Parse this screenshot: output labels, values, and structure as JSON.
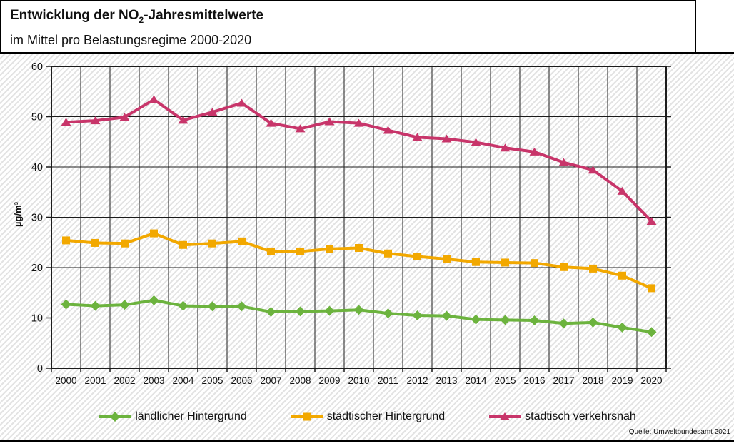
{
  "header": {
    "title_prefix": "Entwicklung der NO",
    "title_sub": "2",
    "title_suffix": "-Jahresmittelwerte",
    "subtitle": "im Mittel pro Belastungsregime 2000-2020"
  },
  "source": "Quelle: Umweltbundesamt 2021",
  "colors": {
    "rural_background": "#6cb33e",
    "urban_background": "#f2a800",
    "urban_traffic": "#c8356a",
    "gridline": "#1c1c1c",
    "hatch_stripe": "#e3e3e3"
  },
  "chart_data": {
    "type": "line",
    "title": "Entwicklung der NO2-Jahresmittelwerte im Mittel pro Belastungsregime 2000-2020",
    "xlabel": "",
    "ylabel": "µg/m³",
    "ylim": [
      0,
      60
    ],
    "ytick_step": 10,
    "grid": true,
    "legend_position": "bottom",
    "categories": [
      2000,
      2001,
      2002,
      2003,
      2004,
      2005,
      2006,
      2007,
      2008,
      2009,
      2010,
      2011,
      2012,
      2013,
      2014,
      2015,
      2016,
      2017,
      2018,
      2019,
      2020
    ],
    "series": [
      {
        "name": "ländlicher Hintergrund",
        "marker": "diamond",
        "color": "#6cb33e",
        "values": [
          12.7,
          12.4,
          12.6,
          13.5,
          12.4,
          12.3,
          12.3,
          11.2,
          11.3,
          11.4,
          11.6,
          10.9,
          10.5,
          10.4,
          9.7,
          9.6,
          9.5,
          8.9,
          9.1,
          8.1,
          7.2
        ]
      },
      {
        "name": "städtischer Hintergrund",
        "marker": "square",
        "color": "#f2a800",
        "values": [
          25.4,
          24.9,
          24.8,
          26.8,
          24.5,
          24.8,
          25.2,
          23.2,
          23.2,
          23.7,
          23.9,
          22.8,
          22.2,
          21.7,
          21.1,
          21.0,
          20.9,
          20.1,
          19.8,
          18.4,
          15.9
        ]
      },
      {
        "name": "städtisch verkehrsnah",
        "marker": "triangle",
        "color": "#c8356a",
        "values": [
          48.9,
          49.2,
          49.9,
          53.4,
          49.3,
          50.9,
          52.7,
          48.7,
          47.6,
          49.0,
          48.7,
          47.3,
          45.9,
          45.6,
          44.9,
          43.8,
          43.0,
          40.9,
          39.4,
          35.2,
          29.2
        ]
      }
    ]
  }
}
